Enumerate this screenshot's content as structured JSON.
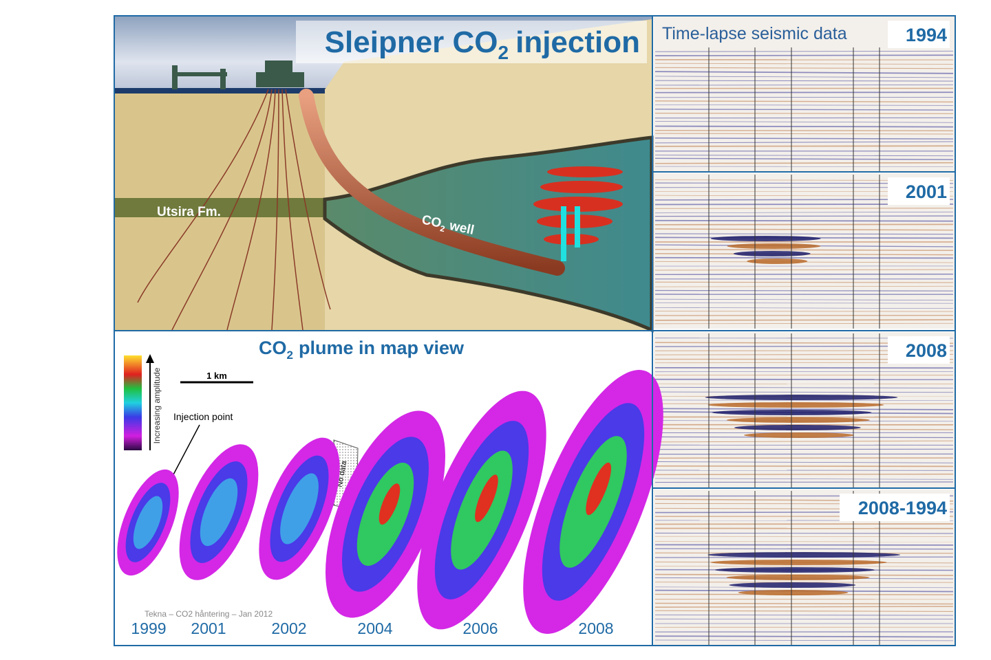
{
  "header": {
    "title": {
      "main": "Sleipner CO",
      "sub": "2",
      "rest": "injection"
    }
  },
  "cross_section": {
    "formation": "Utsira Fm.",
    "well": {
      "main": "CO",
      "sub": "2",
      "rest": "well"
    }
  },
  "seismic": {
    "title": "Time-lapse seismic data",
    "panels": [
      "1994",
      "2001",
      "2008",
      "2008-1994"
    ]
  },
  "map_view": {
    "title": {
      "main": "CO",
      "sub": "2",
      "rest": "plume in map view"
    },
    "scale": "1 km",
    "injection": "Injection point",
    "colorbar": "Increasing amplitude",
    "no_data": "No data",
    "credit": "Tekna – CO2 håntering – Jan 2012",
    "years": [
      "1999",
      "2001",
      "2002",
      "2004",
      "2006",
      "2008"
    ]
  }
}
